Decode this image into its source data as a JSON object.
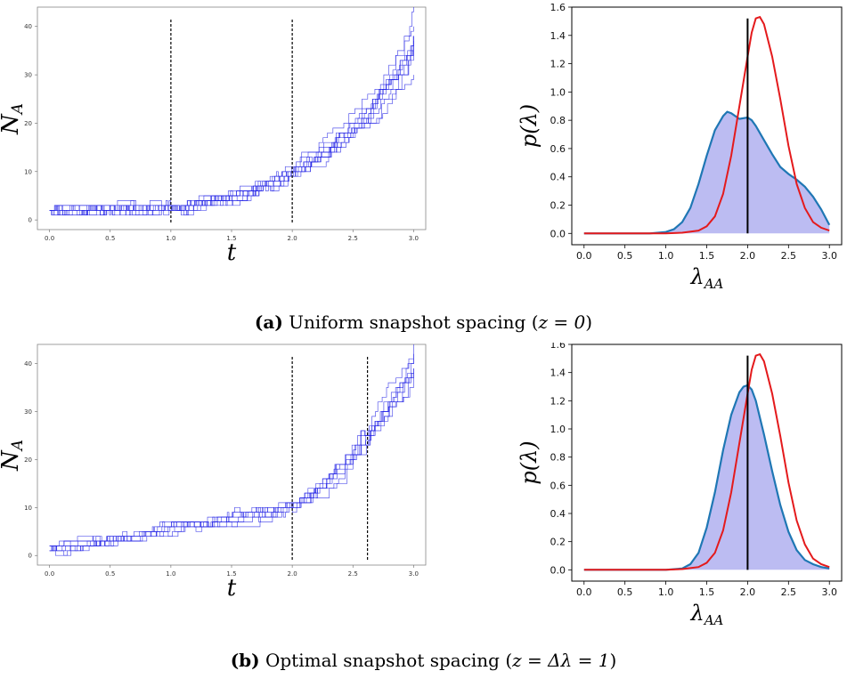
{
  "captions": {
    "a": {
      "tag": "(a)",
      "text": "Uniform snapshot spacing",
      "cond": "z = 0"
    },
    "b": {
      "tag": "(b)",
      "text": "Optimal snapshot spacing",
      "cond": "z = Δλ = 1"
    }
  },
  "colors": {
    "trajectory": "#1f1fe6",
    "posterior_line": "#1f77b4",
    "posterior_fill": "#b0b0f0",
    "reference": "#e41a1c",
    "truth": "#000000",
    "snapshot": "#000000"
  },
  "chart_data": [
    {
      "id": "traj-a",
      "type": "line",
      "xlabel": "t",
      "ylabel": "N_A",
      "xlim": [
        -0.1,
        3.1
      ],
      "ylim": [
        -2,
        44
      ],
      "xticks": [
        "0.0",
        "0.5",
        "1.0",
        "1.5",
        "2.0",
        "2.5",
        "3.0"
      ],
      "yticks": [
        "0",
        "10",
        "20",
        "30",
        "40"
      ],
      "snapshots": [
        1.0,
        2.0
      ],
      "trajectories": {
        "count": 10,
        "spread": "wide",
        "anchors": [
          [
            0,
            2
          ],
          [
            1.0,
            2.5
          ],
          [
            2.0,
            10
          ],
          [
            3.0,
            40
          ]
        ]
      }
    },
    {
      "id": "post-a",
      "type": "area",
      "xlabel": "λ_AA",
      "ylabel": "p(λ)",
      "xlim": [
        -0.15,
        3.15
      ],
      "ylim": [
        -0.08,
        1.6
      ],
      "xticks": [
        "0.0",
        "0.5",
        "1.0",
        "1.5",
        "2.0",
        "2.5",
        "3.0"
      ],
      "yticks": [
        "0.0",
        "0.2",
        "0.4",
        "0.6",
        "0.8",
        "1.0",
        "1.2",
        "1.4",
        "1.6"
      ],
      "true_value": 2.0,
      "truth_top": 1.52,
      "series": [
        {
          "kind": "posterior",
          "x": [
            0,
            0.8,
            1.0,
            1.1,
            1.2,
            1.3,
            1.4,
            1.5,
            1.6,
            1.7,
            1.75,
            1.8,
            1.9,
            2.0,
            2.05,
            2.1,
            2.2,
            2.3,
            2.4,
            2.5,
            2.6,
            2.7,
            2.8,
            2.9,
            3.0
          ],
          "y": [
            0,
            0,
            0.01,
            0.03,
            0.08,
            0.18,
            0.35,
            0.55,
            0.73,
            0.83,
            0.86,
            0.85,
            0.81,
            0.82,
            0.8,
            0.76,
            0.66,
            0.56,
            0.47,
            0.42,
            0.38,
            0.33,
            0.26,
            0.17,
            0.06
          ]
        },
        {
          "kind": "reference",
          "x": [
            0,
            1.0,
            1.2,
            1.4,
            1.5,
            1.6,
            1.7,
            1.8,
            1.9,
            2.0,
            2.05,
            2.1,
            2.15,
            2.2,
            2.3,
            2.4,
            2.5,
            2.6,
            2.7,
            2.8,
            2.9,
            3.0
          ],
          "y": [
            0,
            0,
            0.005,
            0.02,
            0.05,
            0.12,
            0.28,
            0.55,
            0.9,
            1.25,
            1.42,
            1.52,
            1.53,
            1.48,
            1.25,
            0.95,
            0.62,
            0.35,
            0.18,
            0.08,
            0.04,
            0.02
          ]
        }
      ]
    },
    {
      "id": "traj-b",
      "type": "line",
      "xlabel": "t",
      "ylabel": "N_A",
      "xlim": [
        -0.1,
        3.1
      ],
      "ylim": [
        -2,
        44
      ],
      "xticks": [
        "0.0",
        "0.5",
        "1.0",
        "1.5",
        "2.0",
        "2.5",
        "3.0"
      ],
      "yticks": [
        "0",
        "10",
        "20",
        "30",
        "40"
      ],
      "snapshots": [
        2.0,
        2.62
      ],
      "trajectories": {
        "count": 8,
        "spread": "narrow",
        "anchors": [
          [
            0,
            1.5
          ],
          [
            1.0,
            6
          ],
          [
            2.0,
            10.5
          ],
          [
            2.62,
            26
          ],
          [
            3.0,
            41
          ]
        ]
      }
    },
    {
      "id": "post-b",
      "type": "area",
      "xlabel": "λ_AA",
      "ylabel": "p(λ)",
      "xlim": [
        -0.15,
        3.15
      ],
      "ylim": [
        -0.08,
        1.6
      ],
      "xticks": [
        "0.0",
        "0.5",
        "1.0",
        "1.5",
        "2.0",
        "2.5",
        "3.0"
      ],
      "yticks": [
        "0.0",
        "0.2",
        "0.4",
        "0.6",
        "0.8",
        "1.0",
        "1.2",
        "1.4",
        "1.6"
      ],
      "true_value": 2.0,
      "truth_top": 1.52,
      "series": [
        {
          "kind": "posterior",
          "x": [
            0,
            1.0,
            1.2,
            1.3,
            1.4,
            1.5,
            1.6,
            1.7,
            1.8,
            1.9,
            1.95,
            2.0,
            2.05,
            2.1,
            2.2,
            2.3,
            2.4,
            2.5,
            2.6,
            2.7,
            2.8,
            2.9,
            3.0
          ],
          "y": [
            0,
            0,
            0.01,
            0.04,
            0.12,
            0.3,
            0.55,
            0.85,
            1.1,
            1.26,
            1.3,
            1.31,
            1.28,
            1.2,
            0.96,
            0.7,
            0.46,
            0.27,
            0.14,
            0.07,
            0.04,
            0.02,
            0.01
          ]
        },
        {
          "kind": "reference",
          "x": [
            0,
            1.0,
            1.2,
            1.4,
            1.5,
            1.6,
            1.7,
            1.8,
            1.9,
            2.0,
            2.05,
            2.1,
            2.15,
            2.2,
            2.3,
            2.4,
            2.5,
            2.6,
            2.7,
            2.8,
            2.9,
            3.0
          ],
          "y": [
            0,
            0,
            0.005,
            0.02,
            0.05,
            0.12,
            0.28,
            0.55,
            0.9,
            1.25,
            1.42,
            1.52,
            1.53,
            1.48,
            1.25,
            0.95,
            0.62,
            0.35,
            0.18,
            0.08,
            0.04,
            0.02
          ]
        }
      ]
    }
  ]
}
